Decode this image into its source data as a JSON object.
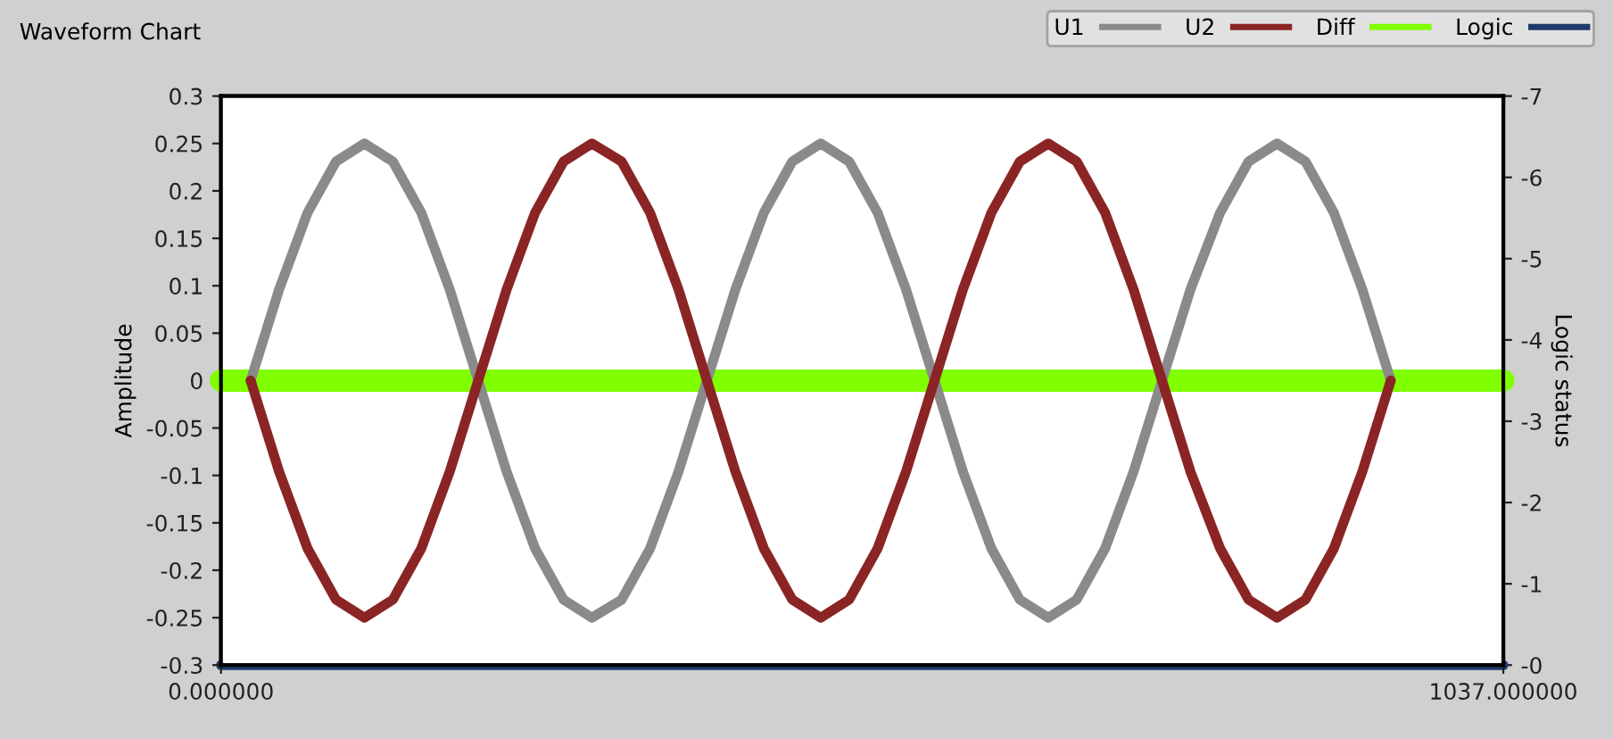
{
  "chart_data": {
    "type": "line",
    "title": "Waveform Chart",
    "ylabel": "Amplitude",
    "y2label": "Logic status",
    "xlim": [
      0,
      1037
    ],
    "xticks": [
      {
        "value": 0,
        "label": "0.000000"
      },
      {
        "value": 1037,
        "label": "1037.000000"
      }
    ],
    "ylim": [
      -0.3,
      0.3
    ],
    "yticks": [
      -0.3,
      -0.25,
      -0.2,
      -0.15,
      -0.1,
      -0.05,
      0,
      0.05,
      0.1,
      0.15,
      0.2,
      0.25,
      0.3
    ],
    "y2lim": [
      0,
      -7
    ],
    "y2ticks": [
      {
        "value": 0,
        "label": "-0"
      },
      -1,
      -2,
      -3,
      -4,
      -5,
      -6,
      -7
    ],
    "legend": "top right",
    "grid": false,
    "line_style": "solid",
    "marker": "none",
    "series": [
      {
        "name": "U1",
        "color": "#8a8a8a",
        "x": [
          24,
          47,
          70,
          93,
          116,
          139,
          162,
          185,
          208,
          231,
          254,
          277,
          300,
          324,
          347,
          370,
          393,
          416,
          439,
          462,
          485,
          508,
          531,
          554,
          577,
          600,
          623,
          646,
          669,
          692,
          715,
          738,
          761,
          784,
          808,
          831,
          854,
          877,
          900,
          923,
          946
        ],
        "values": [
          0,
          0.096,
          0.177,
          0.231,
          0.25,
          0.231,
          0.177,
          0.096,
          0,
          -0.096,
          -0.177,
          -0.231,
          -0.25,
          -0.231,
          -0.177,
          -0.096,
          0,
          0.096,
          0.177,
          0.231,
          0.25,
          0.231,
          0.177,
          0.096,
          0,
          -0.096,
          -0.177,
          -0.231,
          -0.25,
          -0.231,
          -0.177,
          -0.096,
          0,
          0.096,
          0.177,
          0.231,
          0.25,
          0.231,
          0.177,
          0.096,
          0
        ]
      },
      {
        "name": "U2",
        "color": "#8b2525",
        "x": [
          24,
          47,
          70,
          93,
          116,
          139,
          162,
          185,
          208,
          231,
          254,
          277,
          300,
          324,
          347,
          370,
          393,
          416,
          439,
          462,
          485,
          508,
          531,
          554,
          577,
          600,
          623,
          646,
          669,
          692,
          715,
          738,
          761,
          784,
          808,
          831,
          854,
          877,
          900,
          923,
          946
        ],
        "values": [
          0,
          -0.096,
          -0.177,
          -0.231,
          -0.25,
          -0.231,
          -0.177,
          -0.096,
          0,
          0.096,
          0.177,
          0.231,
          0.25,
          0.231,
          0.177,
          0.096,
          0,
          -0.096,
          -0.177,
          -0.231,
          -0.25,
          -0.231,
          -0.177,
          -0.096,
          0,
          0.096,
          0.177,
          0.231,
          0.25,
          0.231,
          0.177,
          0.096,
          0,
          -0.096,
          -0.177,
          -0.231,
          -0.25,
          -0.231,
          -0.177,
          -0.096,
          0
        ]
      },
      {
        "name": "Diff",
        "color": "#80ff00",
        "x": [
          0,
          1037
        ],
        "values": [
          0,
          0
        ]
      },
      {
        "name": "Logic",
        "color": "#1f3a6b",
        "axis": "y2",
        "x": [
          0,
          1037
        ],
        "values": [
          0,
          0
        ]
      }
    ]
  }
}
